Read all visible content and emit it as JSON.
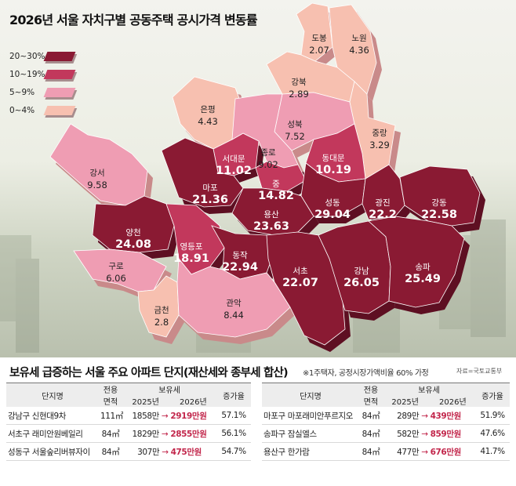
{
  "map": {
    "title": "2026년 서울 자치구별 공동주택 공시가격 변동률",
    "legend": [
      {
        "label": "20~30%",
        "color": "#8a1a33"
      },
      {
        "label": "10~19%",
        "color": "#c2385c"
      },
      {
        "label": "5~9%",
        "color": "#ef9db3"
      },
      {
        "label": "0~4%",
        "color": "#f7c0b0"
      }
    ]
  },
  "chart_data": {
    "type": "choropleth",
    "title": "2026년 서울 자치구별 공동주택 공시가격 변동률",
    "unit": "%",
    "districts": [
      {
        "name": "도봉",
        "value": 2.07
      },
      {
        "name": "노원",
        "value": 4.36
      },
      {
        "name": "강북",
        "value": 2.89
      },
      {
        "name": "은평",
        "value": 4.43
      },
      {
        "name": "성북",
        "value": 7.52
      },
      {
        "name": "중랑",
        "value": 3.29
      },
      {
        "name": "서대문",
        "value": 11.02
      },
      {
        "name": "종로",
        "value": 9.02
      },
      {
        "name": "동대문",
        "value": 10.19
      },
      {
        "name": "강서",
        "value": 9.58
      },
      {
        "name": "마포",
        "value": 21.36
      },
      {
        "name": "중",
        "value": 14.82
      },
      {
        "name": "성동",
        "value": 29.04
      },
      {
        "name": "광진",
        "value": 22.2
      },
      {
        "name": "강동",
        "value": 22.58
      },
      {
        "name": "용산",
        "value": 23.63
      },
      {
        "name": "양천",
        "value": 24.08
      },
      {
        "name": "영등포",
        "value": 18.91
      },
      {
        "name": "동작",
        "value": 22.94
      },
      {
        "name": "서초",
        "value": 22.07
      },
      {
        "name": "강남",
        "value": 26.05
      },
      {
        "name": "송파",
        "value": 25.49
      },
      {
        "name": "구로",
        "value": 6.06
      },
      {
        "name": "금천",
        "value": 2.8
      },
      {
        "name": "관악",
        "value": 8.44
      }
    ]
  },
  "table": {
    "title": "보유세 급증하는 서울 주요 아파트 단지(재산세와 종부세 합산)",
    "note": "※1주택자, 공정시장가액비율 60% 가정",
    "source": "자료=국토교통부",
    "headers": {
      "complex": "단지명",
      "area_line1": "전용",
      "area_line2": "면적",
      "tax": "보유세",
      "year_old": "2025년",
      "year_new": "2026년",
      "rate": "증가율"
    },
    "left_rows": [
      {
        "name": "강남구 신현대9차",
        "area": "111㎡",
        "old": "1858만",
        "new": "2919만원",
        "rate": "57.1%"
      },
      {
        "name": "서초구 래미안원베일리",
        "area": "84㎡",
        "old": "1829만",
        "new": "2855만원",
        "rate": "56.1%"
      },
      {
        "name": "성동구 서울숲리버뷰자이",
        "area": "84㎡",
        "old": "307만",
        "new": "475만원",
        "rate": "54.7%"
      }
    ],
    "right_rows": [
      {
        "name": "마포구 마포래미안푸르지오",
        "area": "84㎡",
        "old": "289만",
        "new": "439만원",
        "rate": "51.9%"
      },
      {
        "name": "송파구 잠실엘스",
        "area": "84㎡",
        "old": "582만",
        "new": "859만원",
        "rate": "47.6%"
      },
      {
        "name": "용산구 한가람",
        "area": "84㎡",
        "old": "477만",
        "new": "676만원",
        "rate": "41.7%"
      }
    ],
    "arrow": "→"
  }
}
